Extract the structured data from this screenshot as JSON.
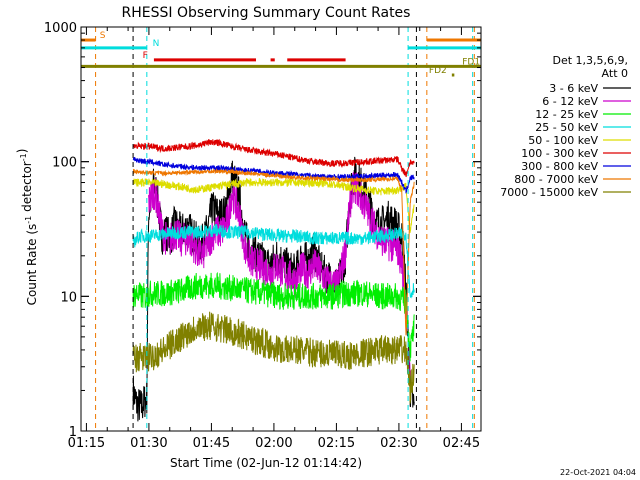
{
  "chart_data": {
    "type": "line",
    "title": "RHESSI Observing Summary Count Rates",
    "xlabel": "Start Time (02-Jun-12 01:14:42)",
    "ylabel": "Count Rate (s⁻¹ detector⁻¹)",
    "x_unit": "minutes after 01:14:42",
    "xlim": [
      0,
      96
    ],
    "ylim": [
      1,
      1000
    ],
    "y_scale": "log",
    "grid": false,
    "legend_position": "right",
    "x_ticks": [
      {
        "x": 1.3,
        "label": "01:15"
      },
      {
        "x": 16.3,
        "label": "01:30"
      },
      {
        "x": 31.3,
        "label": "01:45"
      },
      {
        "x": 46.3,
        "label": "02:00"
      },
      {
        "x": 61.3,
        "label": "02:15"
      },
      {
        "x": 76.3,
        "label": "02:30"
      },
      {
        "x": 91.3,
        "label": "02:45"
      }
    ],
    "y_ticks": [
      {
        "y": 1,
        "label": "1"
      },
      {
        "y": 10,
        "label": "10"
      },
      {
        "y": 100,
        "label": "100"
      },
      {
        "y": 1000,
        "label": "1000"
      }
    ],
    "legend_title": [
      "Det 1,3,5,6,9,",
      "Att 0"
    ],
    "series": [
      {
        "name": "3 - 6 keV",
        "color": "#000000",
        "x": [
          12.5,
          13.3,
          14.5,
          15.8,
          16.2,
          17.5,
          18,
          19.5,
          20.5,
          21.5,
          22.5,
          24,
          25.5,
          27,
          28.5,
          29.5,
          30.5,
          31.5,
          32.5,
          33.5,
          34.5,
          35.5,
          36.2,
          37,
          38,
          39.5,
          41,
          42.5,
          44,
          45.5,
          47,
          48.5,
          50,
          51.5,
          53,
          54.5,
          56,
          57.5,
          59,
          60.5,
          61.5,
          62.5,
          63.5,
          64.3,
          65,
          66,
          67,
          68,
          69.5,
          71,
          72.5,
          74,
          75.5,
          77,
          78,
          79,
          80
        ],
        "y": [
          2,
          1.6,
          1.5,
          1.8,
          40,
          70,
          60,
          28,
          30,
          27,
          35,
          30,
          33,
          28,
          24,
          26,
          33,
          45,
          42,
          40,
          42,
          55,
          80,
          70,
          55,
          27,
          22,
          20,
          18,
          17,
          20,
          18,
          16,
          15,
          20,
          18,
          22,
          16,
          14,
          13,
          12,
          15,
          20,
          45,
          70,
          85,
          70,
          60,
          45,
          35,
          35,
          38,
          34,
          28,
          12,
          2,
          1.5
        ]
      },
      {
        "name": "6 - 12 keV",
        "color": "#cc00cc",
        "x": [
          16.2,
          17.5,
          18,
          19.5,
          21,
          22.5,
          24,
          25.5,
          27,
          28.5,
          29.5,
          30.5,
          32,
          33.5,
          34.5,
          35.5,
          36.2,
          37,
          38,
          39.5,
          41,
          42.5,
          44,
          45.5,
          47,
          48.5,
          50,
          51.5,
          53,
          54.5,
          56,
          57.5,
          59,
          60.5,
          61.5,
          62.5,
          63.5,
          64.3,
          65,
          66,
          67,
          68.5,
          70,
          71.5,
          73,
          74.5,
          76,
          77,
          78,
          79
        ],
        "y": [
          50,
          60,
          55,
          30,
          25,
          30,
          26,
          27,
          24,
          20,
          21,
          25,
          30,
          30,
          32,
          40,
          60,
          50,
          40,
          22,
          18,
          17,
          16,
          15,
          17,
          15,
          14,
          13,
          16,
          15,
          17,
          15,
          13,
          12,
          12,
          16,
          22,
          40,
          60,
          65,
          55,
          45,
          35,
          28,
          25,
          24,
          22,
          18,
          9,
          3
        ]
      },
      {
        "name": "12 - 25 keV",
        "color": "#00ee00",
        "x": [
          12.5,
          13.3,
          14.5,
          15.8,
          16.3,
          20,
          24,
          28,
          32,
          36,
          40,
          44,
          48,
          52,
          56,
          60,
          64,
          68,
          72,
          76,
          78,
          79,
          80
        ],
        "y": [
          10,
          10.5,
          10,
          10,
          10.5,
          10.5,
          11,
          12,
          12,
          11.5,
          11,
          10.5,
          10,
          10,
          10,
          10,
          10.5,
          10.5,
          10,
          10,
          9,
          4,
          6
        ]
      },
      {
        "name": "25 - 50 keV",
        "color": "#00dddd",
        "x": [
          12.5,
          14,
          15.8,
          16.3,
          20,
          24,
          28,
          32,
          36,
          40,
          44,
          48,
          52,
          56,
          60,
          64,
          68,
          72,
          76,
          78,
          79,
          80
        ],
        "y": [
          25,
          28,
          28,
          28,
          29,
          30,
          30,
          31,
          30,
          30,
          29,
          28,
          28,
          27,
          27,
          27,
          27,
          28,
          29,
          29,
          10,
          12
        ]
      },
      {
        "name": "50 - 100 keV",
        "color": "#dddd00",
        "x": [
          12.5,
          14,
          15.8,
          16.3,
          20,
          24,
          28,
          32,
          36,
          40,
          44,
          48,
          52,
          56,
          60,
          64,
          68,
          72,
          76,
          78,
          79,
          80
        ],
        "y": [
          70,
          70,
          70,
          70,
          68,
          65,
          62,
          65,
          68,
          70,
          70,
          70,
          70,
          70,
          68,
          65,
          62,
          60,
          62,
          65,
          30,
          50
        ]
      },
      {
        "name": "100 - 300 keV",
        "color": "#dd0000",
        "x": [
          12.5,
          14,
          15.8,
          16.3,
          20,
          24,
          28,
          31,
          33,
          36,
          40,
          44,
          48,
          52,
          56,
          60,
          64,
          68,
          72,
          76,
          77,
          78,
          79,
          80
        ],
        "y": [
          130,
          130,
          130,
          130,
          125,
          128,
          132,
          140,
          138,
          130,
          122,
          117,
          112,
          105,
          100,
          97,
          98,
          100,
          102,
          104,
          90,
          80,
          100,
          95
        ]
      },
      {
        "name": "300 - 800 keV",
        "color": "#0000dd",
        "x": [
          12.5,
          14,
          15.8,
          16.3,
          20,
          24,
          28,
          32,
          36,
          40,
          44,
          48,
          52,
          56,
          60,
          64,
          68,
          72,
          76,
          77,
          78,
          79,
          80
        ],
        "y": [
          105,
          102,
          100,
          100,
          95,
          92,
          90,
          90,
          88,
          86,
          84,
          82,
          80,
          78,
          77,
          77,
          78,
          79,
          80,
          70,
          60,
          75,
          78
        ]
      },
      {
        "name": "800 - 7000 keV",
        "color": "#ee7700",
        "x": [
          12.5,
          14,
          15.8,
          16.3,
          20,
          24,
          28,
          32,
          36,
          40,
          44,
          48,
          52,
          56,
          60,
          64,
          68,
          72,
          76,
          77,
          78,
          79,
          80
        ],
        "y": [
          85,
          84,
          83,
          83,
          82,
          83,
          84,
          85,
          84,
          82,
          80,
          78,
          76,
          75,
          74,
          73,
          73,
          74,
          75,
          60,
          5,
          50,
          70
        ]
      },
      {
        "name": "7000 - 15000 keV",
        "color": "#808000",
        "x": [
          12.5,
          14,
          15.8,
          16.3,
          20,
          24,
          28,
          32,
          36,
          40,
          44,
          48,
          52,
          56,
          60,
          64,
          68,
          72,
          76,
          78,
          79,
          80
        ],
        "y": [
          3.5,
          3.5,
          3.5,
          3.5,
          4,
          5,
          6,
          6,
          5.5,
          5,
          4.5,
          4,
          4,
          3.8,
          3.7,
          3.6,
          3.8,
          4,
          4,
          4,
          2,
          3
        ]
      }
    ],
    "flags": [
      {
        "label": "S",
        "color": "#ee7700",
        "y": 800,
        "segments": [
          [
            0,
            3.5
          ],
          [
            83,
            96
          ]
        ],
        "label_x": 4.5
      },
      {
        "label": "N",
        "color": "#00dddd",
        "y": 700,
        "segments": [
          [
            0,
            15.8
          ],
          [
            78.5,
            96
          ]
        ],
        "label_x": 17.2
      },
      {
        "label": "F",
        "color": "#dd0000",
        "y": 570,
        "segments": [
          [
            17.5,
            42
          ],
          [
            45.5,
            46.5
          ],
          [
            49.5,
            63.5
          ]
        ],
        "label_x": 14.8
      },
      {
        "label": "FD1",
        "color": "#808000",
        "y": 510,
        "segments": [
          [
            0,
            96
          ]
        ],
        "label_x": 91.5
      },
      {
        "label": "FD2",
        "color": "#808000",
        "y": 440,
        "segments": [
          [
            89,
            89.6
          ]
        ],
        "label_x": 83.5
      }
    ],
    "vertical_markers": [
      {
        "x": 3.5,
        "color": "#ee7700"
      },
      {
        "x": 12.5,
        "color": "#000000"
      },
      {
        "x": 15.8,
        "color": "#00dddd"
      },
      {
        "x": 78.5,
        "color": "#00dddd"
      },
      {
        "x": 80.5,
        "color": "#000000"
      },
      {
        "x": 83,
        "color": "#ee7700"
      },
      {
        "x": 94,
        "color": "#00dddd"
      },
      {
        "x": 94.4,
        "color": "#ee7700"
      }
    ]
  },
  "footer": {
    "timestamp": "22-Oct-2021 04:04"
  }
}
